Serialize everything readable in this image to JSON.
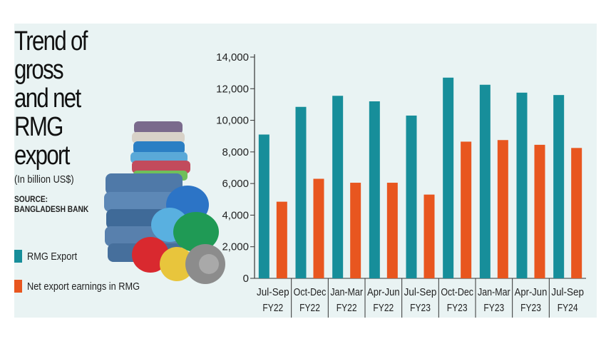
{
  "title_lines": [
    "Trend of gross",
    "and net RMG",
    "export"
  ],
  "unit": "(In billion US$)",
  "source_label": "SOURCE:",
  "source_name": "BANGLADESH BANK",
  "legend": [
    {
      "label": "RMG Export",
      "color": "#178e9a"
    },
    {
      "label": "Net export earnings in RMG",
      "color": "#e8561f"
    }
  ],
  "illustration": "stack-of-folded-clothes",
  "chart_data": {
    "type": "bar",
    "categories": [
      [
        "Jul-Sep",
        "FY22"
      ],
      [
        "Oct-Dec",
        "FY22"
      ],
      [
        "Jan-Mar",
        "FY22"
      ],
      [
        "Apr-Jun",
        "FY22"
      ],
      [
        "Jul-Sep",
        "FY23"
      ],
      [
        "Oct-Dec",
        "FY23"
      ],
      [
        "Jan-Mar",
        "FY23"
      ],
      [
        "Apr-Jun",
        "FY23"
      ],
      [
        "Jul-Sep",
        "FY24"
      ]
    ],
    "series": [
      {
        "name": "RMG Export",
        "color": "#178e9a",
        "values": [
          9100,
          10850,
          11550,
          11200,
          10300,
          12700,
          12250,
          11750,
          11600
        ]
      },
      {
        "name": "Net export earnings in RMG",
        "color": "#e8561f",
        "values": [
          4850,
          6300,
          6050,
          6050,
          5300,
          8650,
          8750,
          8450,
          8250
        ]
      }
    ],
    "yticks": [
      "14,000",
      "12,000",
      "10,000",
      "8,000",
      "6,000",
      "4,000",
      "2,000",
      "0"
    ],
    "ylim": [
      0,
      14000
    ],
    "grid": false
  }
}
